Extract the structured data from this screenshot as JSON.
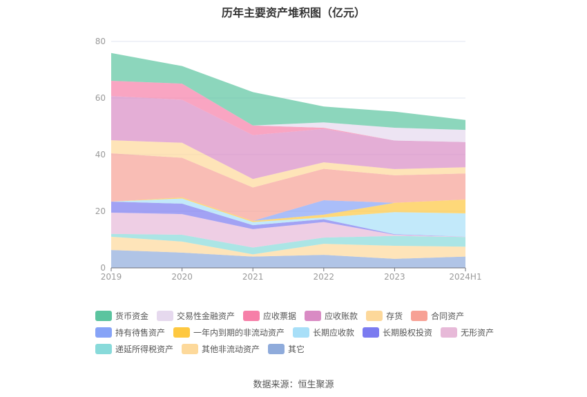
{
  "title": "历年主要资产堆积图（亿元）",
  "source": "数据来源：恒生聚源",
  "chart_data": {
    "type": "area",
    "stacked": true,
    "title": "历年主要资产堆积图（亿元）",
    "xlabel": "",
    "ylabel": "",
    "ylim": [
      0,
      80
    ],
    "yticks": [
      0,
      20,
      40,
      60,
      80
    ],
    "grid": true,
    "legend_position": "bottom",
    "categories": [
      "2019",
      "2020",
      "2021",
      "2022",
      "2023",
      "2024H1"
    ],
    "series": [
      {
        "name": "其它",
        "color": "#8fabdb",
        "values": [
          6.3,
          5.4,
          4.0,
          4.6,
          3.2,
          4.0
        ]
      },
      {
        "name": "其他非流动资产",
        "color": "#fdd99b",
        "values": [
          4.7,
          3.9,
          0.8,
          3.9,
          4.6,
          3.5
        ]
      },
      {
        "name": "递延所得税资产",
        "color": "#88dada",
        "values": [
          1.0,
          2.4,
          2.4,
          2.2,
          3.5,
          3.4
        ]
      },
      {
        "name": "无形资产",
        "color": "#e7b9d8",
        "values": [
          7.5,
          7.3,
          6.5,
          5.5,
          0.4,
          0.1
        ]
      },
      {
        "name": "长期股权投资",
        "color": "#7b7bf0",
        "values": [
          3.9,
          3.7,
          1.4,
          1.0,
          0.2,
          0.05
        ]
      },
      {
        "name": "长期应收款",
        "color": "#a8dff8",
        "values": [
          0,
          1.8,
          1.1,
          0.6,
          7.8,
          8.2
        ]
      },
      {
        "name": "一年内到期的非流动资产",
        "color": "#fec840",
        "values": [
          0,
          0.4,
          0.4,
          1.0,
          3.3,
          4.9
        ]
      },
      {
        "name": "持有待售资产",
        "color": "#86a3f7",
        "values": [
          0,
          0,
          0,
          5.1,
          0,
          0
        ]
      },
      {
        "name": "合同资产",
        "color": "#f7a195",
        "values": [
          17.1,
          14.0,
          11.8,
          11.1,
          9.7,
          9.2
        ]
      },
      {
        "name": "存货",
        "color": "#fdd89a",
        "values": [
          4.6,
          5.3,
          3.0,
          2.3,
          2.2,
          2.2
        ]
      },
      {
        "name": "应收账款",
        "color": "#d98bc4",
        "values": [
          15.6,
          15.2,
          15.5,
          11.8,
          10.1,
          8.9
        ]
      },
      {
        "name": "应收票据",
        "color": "#f67fa8",
        "values": [
          5.4,
          5.7,
          3.4,
          0.4,
          0,
          0
        ]
      },
      {
        "name": "交易性金融资产",
        "color": "#e6d9ee",
        "values": [
          0,
          0,
          0,
          1.9,
          4.5,
          4.3
        ]
      },
      {
        "name": "货币资金",
        "color": "#5bc49f",
        "values": [
          9.8,
          6.2,
          11.8,
          5.6,
          5.7,
          3.5
        ]
      }
    ],
    "legend_order": [
      "货币资金",
      "交易性金融资产",
      "应收票据",
      "应收账款",
      "存货",
      "合同资产",
      "持有待售资产",
      "一年内到期的非流动资产",
      "长期应收款",
      "长期股权投资",
      "无形资产",
      "递延所得税资产",
      "其他非流动资产",
      "其它"
    ]
  }
}
